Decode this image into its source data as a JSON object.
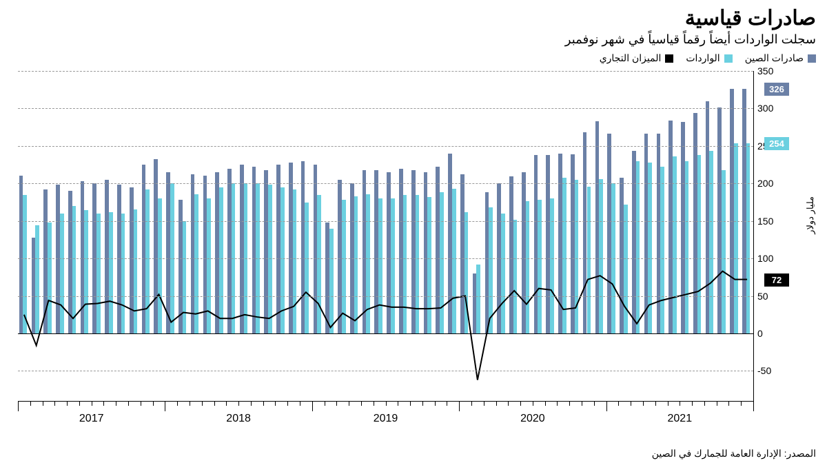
{
  "title": "صادرات قياسية",
  "subtitle": "سجلت الواردات أيضاً رقماً قياسياً في شهر نوفمبر",
  "legend": {
    "exports": "صادرات الصين",
    "imports": "الواردات",
    "balance": "الميزان التجاري"
  },
  "yaxis_label": "مليار دولار",
  "source": "المصدر: الإدارة العامة للجمارك في الصين",
  "chart": {
    "type": "bar+line",
    "ylim": [
      -90,
      350
    ],
    "yticks": [
      -50,
      0,
      50,
      100,
      150,
      200,
      250,
      300,
      350
    ],
    "years": [
      "2017",
      "2018",
      "2019",
      "2020",
      "2021"
    ],
    "colors": {
      "exports": "#6b80a6",
      "imports": "#6bd0e0",
      "balance": "#000000",
      "grid": "#999999",
      "bg": "#ffffff",
      "endlabel_exports_bg": "#6b80a6",
      "endlabel_imports_bg": "#6bd0e0",
      "endlabel_balance_bg": "#000000"
    },
    "bar_group_gap": 0.2,
    "bar_width": 0.4,
    "exports": [
      210,
      128,
      192,
      198,
      190,
      203,
      200,
      205,
      198,
      195,
      225,
      232,
      215,
      178,
      212,
      210,
      215,
      220,
      225,
      222,
      218,
      225,
      228,
      230,
      225,
      148,
      205,
      200,
      218,
      218,
      215,
      220,
      218,
      215,
      222,
      240,
      212,
      80,
      188,
      200,
      209,
      215,
      238,
      238,
      240,
      239,
      268,
      283,
      266,
      208,
      243,
      266,
      266,
      284,
      282,
      294,
      310,
      301,
      326,
      326
    ],
    "imports": [
      185,
      144,
      148,
      160,
      170,
      164,
      160,
      162,
      160,
      165,
      192,
      180,
      200,
      150,
      186,
      180,
      195,
      200,
      200,
      200,
      198,
      195,
      192,
      175,
      185,
      140,
      178,
      183,
      186,
      180,
      180,
      185,
      185,
      182,
      188,
      193,
      162,
      92,
      168,
      160,
      152,
      176,
      178,
      180,
      208,
      205,
      196,
      206,
      200,
      172,
      230,
      228,
      222,
      236,
      230,
      238,
      243,
      218,
      254,
      254
    ],
    "balance": [
      25,
      -16,
      44,
      38,
      20,
      39,
      40,
      43,
      38,
      30,
      33,
      52,
      15,
      28,
      26,
      30,
      20,
      20,
      25,
      22,
      20,
      30,
      36,
      55,
      40,
      8,
      27,
      17,
      32,
      38,
      35,
      35,
      33,
      33,
      34,
      47,
      50,
      -62,
      20,
      40,
      57,
      39,
      60,
      58,
      32,
      34,
      72,
      77,
      66,
      36,
      13,
      38,
      44,
      48,
      52,
      56,
      67,
      83,
      72,
      72
    ],
    "end_labels": {
      "exports": "326",
      "imports": "254",
      "balance": "72"
    }
  }
}
